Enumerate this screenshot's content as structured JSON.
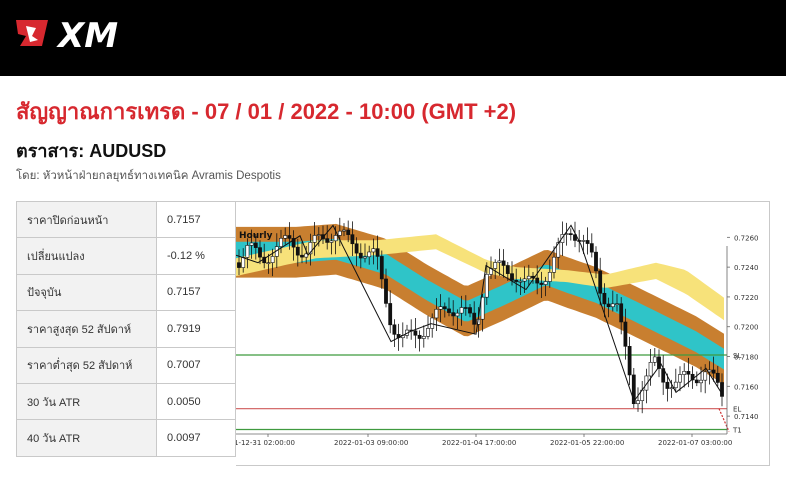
{
  "header": {
    "logo_text": "XM",
    "title": "สัญญาณการเทรด - 07 / 01 / 2022 - 10:00 (GMT +2)",
    "instrument": "ตราสาร: AUDUSD",
    "author": "โดย: หัวหน้าฝ่ายกลยุทธ์ทางเทคนิค Avramis Despotis"
  },
  "stats": [
    {
      "label": "ราคาปิดก่อนหน้า",
      "value": "0.7157"
    },
    {
      "label": "เปลี่ยนแปลง",
      "value": "-0.12 %"
    },
    {
      "label": "ปัจจุบัน",
      "value": "0.7157"
    },
    {
      "label": "ราคาสูงสุด 52 สัปดาห์",
      "value": "0.7919"
    },
    {
      "label": "ราคาต่ำสุด 52 สัปดาห์",
      "value": "0.7007"
    },
    {
      "label": "30 วัน ATR",
      "value": "0.0050"
    },
    {
      "label": "40 วัน ATR",
      "value": "0.0097"
    }
  ],
  "chart_data": {
    "type": "line",
    "timeframe_label": "Hourly",
    "x_ticks": [
      "1-12-31 02:00:00",
      "2022-01-03 09:00:00",
      "2022-01-04 17:00:00",
      "2022-01-05 22:00:00",
      "2022-01-07 03:00:00"
    ],
    "y_ticks": [
      "0.7260",
      "0.7240",
      "0.7220",
      "0.7200",
      "0.7180",
      "0.7160",
      "0.7140"
    ],
    "ylim": [
      0.7128,
      0.7277
    ],
    "levels": [
      {
        "label": "SL",
        "value": 0.7181,
        "color": "#3f9a3f"
      },
      {
        "label": "EL",
        "value": 0.7145,
        "color": "#cf5a5a"
      },
      {
        "label": "T1",
        "value": 0.7131,
        "color": "#3f9a3f"
      }
    ],
    "colors": {
      "candles": "#111111",
      "band_outer": "#c87f30",
      "band_inner": "#2fc4c8",
      "cloud": "#f7e27a"
    }
  }
}
